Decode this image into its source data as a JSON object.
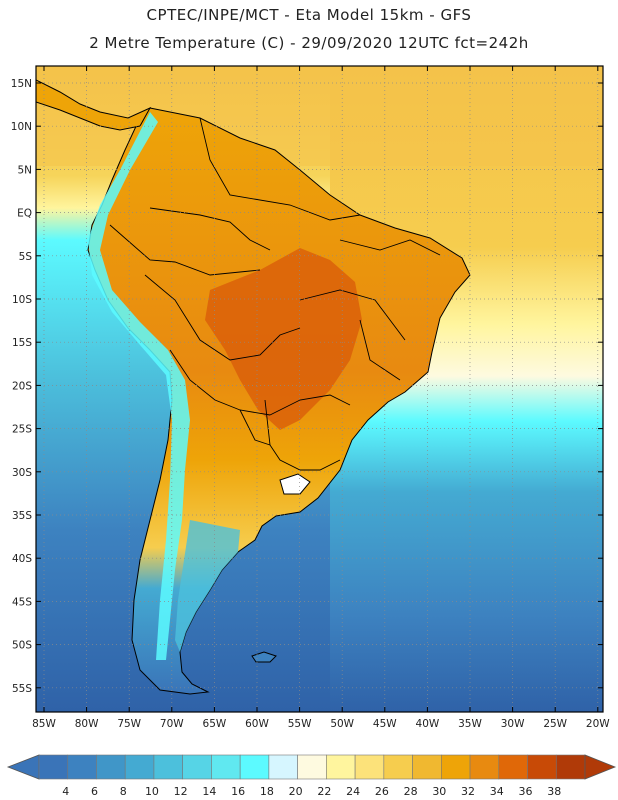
{
  "header": {
    "line1": "CPTEC/INPE/MCT -  Eta Model 15km - GFS",
    "line2": "2 Metre Temperature (C) - 29/09/2020 12UTC fct=242h"
  },
  "axes": {
    "lat_labels": [
      "15N",
      "10N",
      "5N",
      "EQ",
      "5S",
      "10S",
      "15S",
      "20S",
      "25S",
      "30S",
      "35S",
      "40S",
      "45S",
      "50S",
      "55S"
    ],
    "lon_labels": [
      "85W",
      "80W",
      "75W",
      "70W",
      "65W",
      "60W",
      "55W",
      "50W",
      "45W",
      "40W",
      "35W",
      "30W",
      "25W",
      "20W"
    ]
  },
  "colorbar": {
    "ticks": [
      "4",
      "6",
      "8",
      "10",
      "12",
      "14",
      "16",
      "18",
      "20",
      "22",
      "24",
      "26",
      "28",
      "30",
      "32",
      "34",
      "36",
      "38"
    ],
    "colors": [
      "#3a74b8",
      "#3d82c0",
      "#4096c8",
      "#44aad2",
      "#4cc0dc",
      "#56d4e6",
      "#60e8f0",
      "#5cfaff",
      "#d6f6ff",
      "#fefae0",
      "#fff59e",
      "#fce27a",
      "#f6cd4e",
      "#f0b830",
      "#eea408",
      "#e88a10",
      "#e06808",
      "#c84a06",
      "#b03a08"
    ]
  },
  "icons": {
    "left_arrow": "colorbar-left-arrow-icon",
    "right_arrow": "colorbar-right-arrow-icon"
  }
}
